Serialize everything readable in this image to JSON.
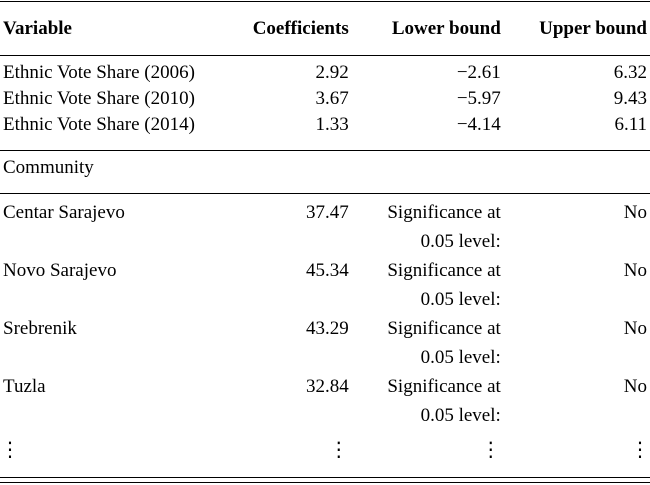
{
  "header": {
    "variable": "Variable",
    "coefficients": "Coefficients",
    "lower": "Lower bound",
    "upper": "Upper bound"
  },
  "ethnic_rows": [
    {
      "label": "Ethnic Vote Share (2006)",
      "coef": "2.92",
      "lower": "−2.61",
      "upper": "6.32"
    },
    {
      "label": "Ethnic Vote Share (2010)",
      "coef": "3.67",
      "lower": "−5.97",
      "upper": "9.43"
    },
    {
      "label": "Ethnic Vote Share (2014)",
      "coef": "1.33",
      "lower": "−4.14",
      "upper": "6.11"
    }
  ],
  "section_label": "Community",
  "community_rows": [
    {
      "label": "Centar Sarajevo",
      "coef": "37.47",
      "sig_line1": "Significance at",
      "sig_line2": "0.05 level:",
      "sig": "No"
    },
    {
      "label": "Novo Sarajevo",
      "coef": "45.34",
      "sig_line1": "Significance at",
      "sig_line2": "0.05 level:",
      "sig": "No"
    },
    {
      "label": "Srebrenik",
      "coef": "43.29",
      "sig_line1": "Significance at",
      "sig_line2": "0.05 level:",
      "sig": "No"
    },
    {
      "label": "Tuzla",
      "coef": "32.84",
      "sig_line1": "Significance at",
      "sig_line2": "0.05 level:",
      "sig": "No"
    }
  ],
  "continuation": "⋮"
}
